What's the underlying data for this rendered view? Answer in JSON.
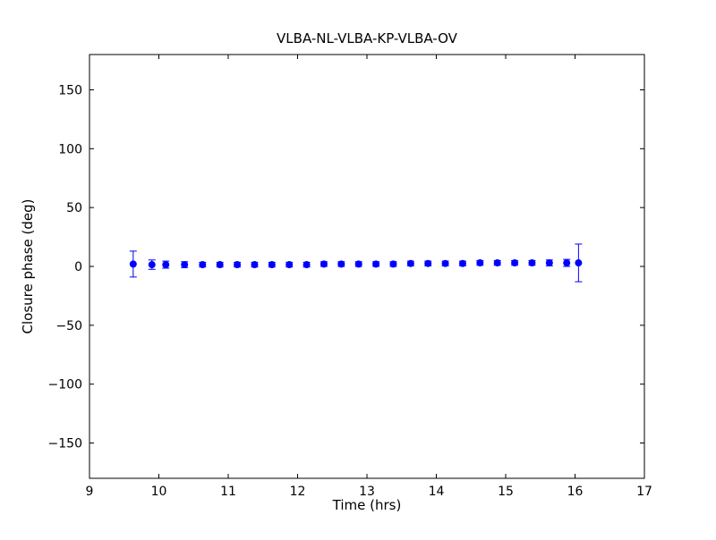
{
  "chart_data": {
    "type": "scatter",
    "title": "VLBA-NL-VLBA-KP-VLBA-OV",
    "xlabel": "Time (hrs)",
    "ylabel": "Closure phase (deg)",
    "xlim": [
      9,
      17
    ],
    "ylim": [
      -180,
      180
    ],
    "xticks": [
      9,
      10,
      11,
      12,
      13,
      14,
      15,
      16,
      17
    ],
    "yticks": [
      -150,
      -100,
      -50,
      0,
      50,
      100,
      150
    ],
    "grid": false,
    "legend": null,
    "marker": "o",
    "marker_color": "#0000ff",
    "errorbar_color": "#0000ff",
    "axis_color": "#000000",
    "x": [
      9.63,
      9.9,
      10.1,
      10.37,
      10.63,
      10.88,
      11.13,
      11.38,
      11.63,
      11.88,
      12.13,
      12.38,
      12.63,
      12.88,
      13.13,
      13.38,
      13.63,
      13.88,
      14.13,
      14.38,
      14.63,
      14.88,
      15.13,
      15.38,
      15.63,
      15.88,
      16.05
    ],
    "y": [
      2,
      1.5,
      1.5,
      1.5,
      1.5,
      1.5,
      1.5,
      1.5,
      1.5,
      1.5,
      1.5,
      2,
      2,
      2,
      2,
      2,
      2.5,
      2.5,
      2.5,
      2.5,
      3,
      3,
      3,
      3,
      3,
      3,
      3
    ],
    "yerr": [
      11,
      4,
      3,
      2.5,
      2,
      2,
      2,
      2,
      2,
      2,
      2,
      2,
      2,
      2,
      2,
      2,
      2,
      2,
      2,
      2,
      2,
      2,
      2,
      2,
      2.5,
      3,
      16
    ]
  }
}
